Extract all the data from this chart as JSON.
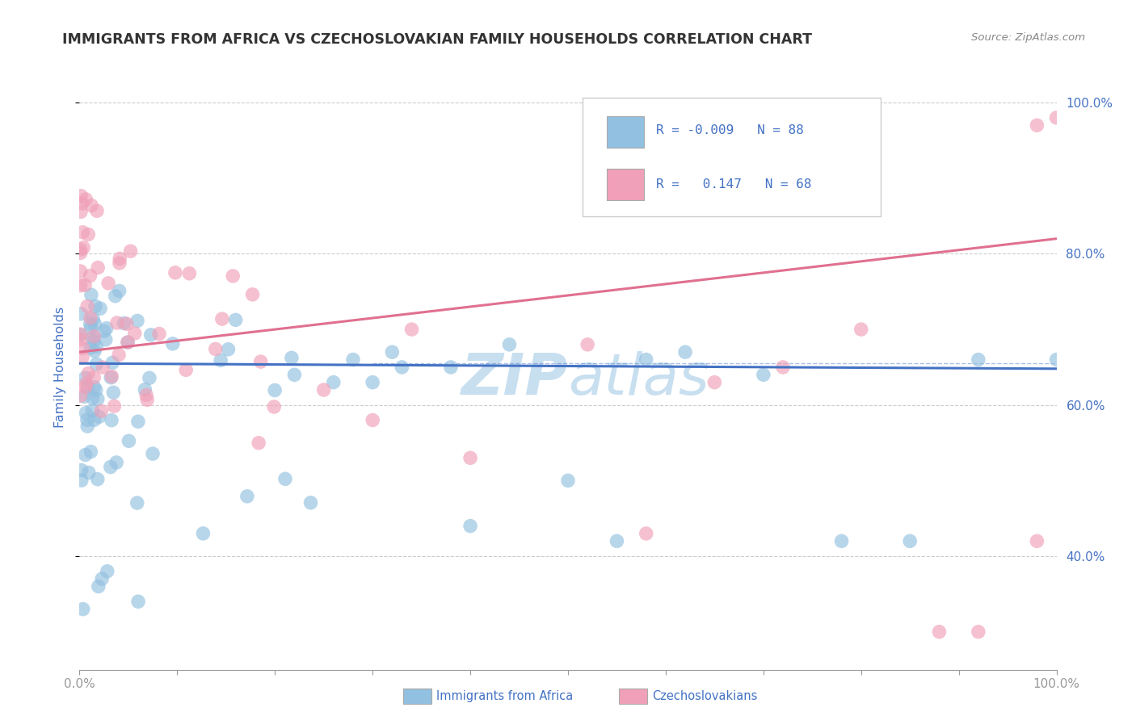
{
  "title": "IMMIGRANTS FROM AFRICA VS CZECHOSLOVAKIAN FAMILY HOUSEHOLDS CORRELATION CHART",
  "source_text": "Source: ZipAtlas.com",
  "ylabel": "Family Households",
  "color_blue": "#92c0e0",
  "color_pink": "#f0a0b8",
  "color_blue_line": "#4472c4",
  "color_pink_line": "#e07090",
  "color_text": "#4472c4",
  "watermark_color": "#c8dff0",
  "grid_color": "#cccccc",
  "bg_color": "#ffffff",
  "title_color": "#333333",
  "axis_color": "#4472c4"
}
